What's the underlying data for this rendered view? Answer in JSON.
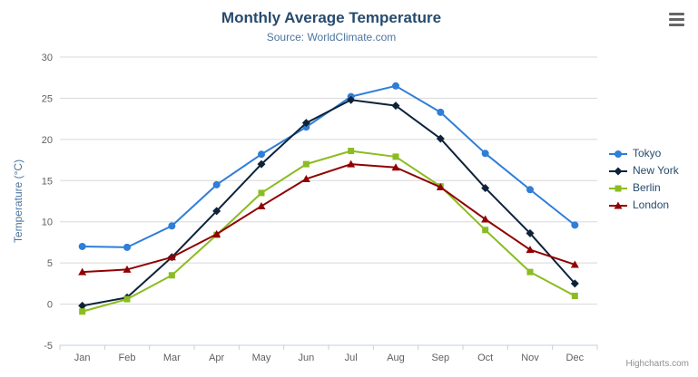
{
  "header": {
    "title": "Monthly Average Temperature",
    "subtitle": "Source: WorldClimate.com"
  },
  "credits": "Highcharts.com",
  "chart_data": {
    "type": "line",
    "title": "Monthly Average Temperature",
    "subtitle": "Source: WorldClimate.com",
    "categories": [
      "Jan",
      "Feb",
      "Mar",
      "Apr",
      "May",
      "Jun",
      "Jul",
      "Aug",
      "Sep",
      "Oct",
      "Nov",
      "Dec"
    ],
    "xlabel": "",
    "ylabel": "Temperature (°C)",
    "ylim": [
      -5,
      30
    ],
    "ytick_step": 5,
    "grid": true,
    "legend_position": "right",
    "series": [
      {
        "name": "Tokyo",
        "color": "#2f7ed8",
        "marker": "circle",
        "values": [
          7.0,
          6.9,
          9.5,
          14.5,
          18.2,
          21.5,
          25.2,
          26.5,
          23.3,
          18.3,
          13.9,
          9.6
        ]
      },
      {
        "name": "New York",
        "color": "#0d233a",
        "marker": "diamond",
        "values": [
          -0.2,
          0.8,
          5.7,
          11.3,
          17.0,
          22.0,
          24.8,
          24.1,
          20.1,
          14.1,
          8.6,
          2.5
        ]
      },
      {
        "name": "Berlin",
        "color": "#8bbc21",
        "marker": "square",
        "values": [
          -0.9,
          0.6,
          3.5,
          8.4,
          13.5,
          17.0,
          18.6,
          17.9,
          14.3,
          9.0,
          3.9,
          1.0
        ]
      },
      {
        "name": "London",
        "color": "#910000",
        "marker": "triangle",
        "values": [
          3.9,
          4.2,
          5.7,
          8.5,
          11.9,
          15.2,
          17.0,
          16.6,
          14.2,
          10.3,
          6.6,
          4.8
        ]
      }
    ]
  },
  "colors": {
    "title_text": "#274b6d",
    "subtitle_text": "#4d759e",
    "axis_label": "#606060",
    "axis_title": "#4d759e",
    "gridline": "#d8d8d8",
    "axis_line": "#c0d0e0",
    "legend_text": "#274b6d",
    "credits_text": "#909090",
    "menu_icon": "#666666"
  }
}
